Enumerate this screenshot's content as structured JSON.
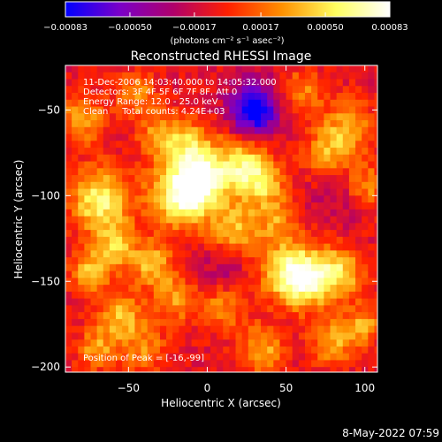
{
  "chart_data": {
    "type": "heatmap",
    "title": "Reconstructed RHESSI Image",
    "xlabel": "Heliocentric X (arcsec)",
    "ylabel": "Heliocentric Y (arcsec)",
    "xlim": [
      -90,
      108
    ],
    "ylim": [
      -203,
      -24
    ],
    "x_ticks": [
      -50,
      0,
      50,
      100
    ],
    "y_ticks": [
      -50,
      -100,
      -150,
      -200
    ],
    "x_tick_labels": [
      "−50",
      "0",
      "50",
      "100"
    ],
    "y_tick_labels": [
      "−50",
      "−100",
      "−150",
      "−200"
    ],
    "colorbar": {
      "range": [
        -0.00083,
        0.00083
      ],
      "tick_values": [
        -0.00083,
        -0.0005,
        -0.00017,
        0.00017,
        0.0005,
        0.00083
      ],
      "tick_labels": [
        "−0.00083",
        "−0.00050",
        "−0.00017",
        "0.00017",
        "0.00050",
        "0.00083"
      ],
      "unit_label": "(photons cm⁻² s⁻¹ asec⁻²)",
      "colors": [
        "#0000ff",
        "#7a00c8",
        "#b0006a",
        "#ff2000",
        "#ff9000",
        "#ffff60",
        "#ffffff"
      ]
    },
    "annotations": [
      "11-Dec-2006 14:03:40.000 to 14:05:32.000",
      "Detectors: 3F 4F 5F 6F 7F 8F, Att 0",
      "Energy Range: 12.0 - 25.0 keV",
      "Clean     Total counts: 4.24E+03"
    ],
    "peak_label": "Position of Peak = [-16,-99]",
    "peak": [
      -16,
      -99
    ],
    "sources": [
      {
        "x": -16,
        "y": -99,
        "value": 0.00083,
        "size": 14
      },
      {
        "x": -4,
        "y": -91,
        "value": 0.00065,
        "size": 10
      },
      {
        "x": -68,
        "y": -103,
        "value": 0.0007,
        "size": 13
      },
      {
        "x": -58,
        "y": -130,
        "value": 0.0005,
        "size": 9
      },
      {
        "x": -35,
        "y": -140,
        "value": 0.0005,
        "size": 9
      },
      {
        "x": 20,
        "y": -82,
        "value": 0.0006,
        "size": 12
      },
      {
        "x": 35,
        "y": -93,
        "value": 0.0005,
        "size": 10
      },
      {
        "x": 18,
        "y": -120,
        "value": 0.0005,
        "size": 11
      },
      {
        "x": -10,
        "y": -70,
        "value": 0.00045,
        "size": 10
      },
      {
        "x": -30,
        "y": -65,
        "value": 0.0004,
        "size": 10
      },
      {
        "x": 50,
        "y": -145,
        "value": 0.0006,
        "size": 12
      },
      {
        "x": 65,
        "y": -148,
        "value": 0.00065,
        "size": 12
      },
      {
        "x": 85,
        "y": -145,
        "value": 0.0005,
        "size": 10
      },
      {
        "x": 90,
        "y": -60,
        "value": 0.00045,
        "size": 11
      },
      {
        "x": 75,
        "y": -75,
        "value": 0.0004,
        "size": 10
      },
      {
        "x": 100,
        "y": -95,
        "value": 0.0004,
        "size": 10
      },
      {
        "x": -75,
        "y": -145,
        "value": 0.0005,
        "size": 9
      },
      {
        "x": -55,
        "y": -170,
        "value": 0.0005,
        "size": 10
      },
      {
        "x": -20,
        "y": -160,
        "value": 0.0004,
        "size": 10
      },
      {
        "x": 10,
        "y": -165,
        "value": 0.0004,
        "size": 10
      },
      {
        "x": 35,
        "y": -190,
        "value": 0.00045,
        "size": 10
      },
      {
        "x": 80,
        "y": -185,
        "value": 0.00045,
        "size": 10
      },
      {
        "x": 100,
        "y": -175,
        "value": 0.0004,
        "size": 8
      },
      {
        "x": -80,
        "y": -55,
        "value": 0.0004,
        "size": 11
      },
      {
        "x": -45,
        "y": -40,
        "value": 0.00035,
        "size": 9
      },
      {
        "x": 60,
        "y": -40,
        "value": 0.00035,
        "size": 10
      },
      {
        "x": 45,
        "y": -115,
        "value": 0.00035,
        "size": 9
      },
      {
        "x": -40,
        "y": -190,
        "value": 0.00035,
        "size": 10
      },
      {
        "x": -70,
        "y": -190,
        "value": 0.0004,
        "size": 9
      },
      {
        "x": 30,
        "y": -50,
        "value": -0.00083,
        "size": 11
      },
      {
        "x": 85,
        "y": -100,
        "value": -0.0002,
        "size": 12
      },
      {
        "x": 10,
        "y": -145,
        "value": -0.0002,
        "size": 12
      }
    ],
    "background_level": -0.0001
  },
  "footer": {
    "date_stamp": "8-May-2022 07:59"
  }
}
